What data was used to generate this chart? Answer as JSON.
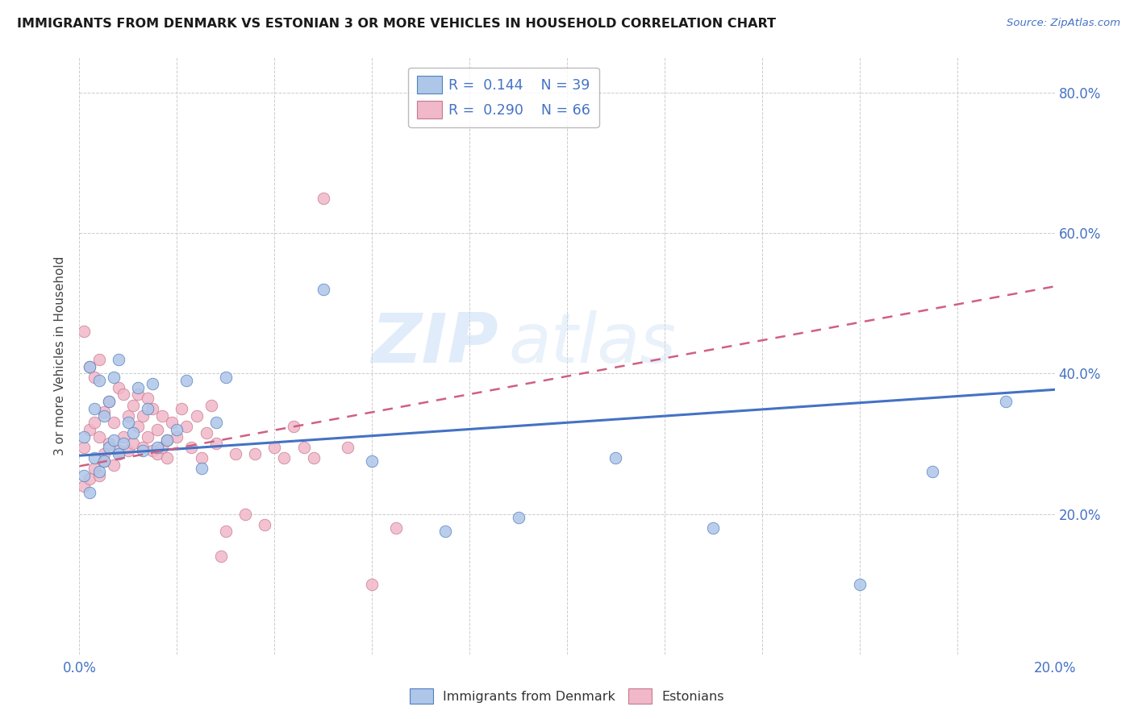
{
  "title": "IMMIGRANTS FROM DENMARK VS ESTONIAN 3 OR MORE VEHICLES IN HOUSEHOLD CORRELATION CHART",
  "source": "Source: ZipAtlas.com",
  "ylabel": "3 or more Vehicles in Household",
  "xlim": [
    0.0,
    0.2
  ],
  "ylim": [
    0.0,
    0.85
  ],
  "color_denmark": "#aec6e8",
  "color_estonia": "#f0b8c8",
  "line_color_denmark": "#4472c4",
  "line_color_estonia": "#d06080",
  "R_denmark": 0.144,
  "N_denmark": 39,
  "R_estonia": 0.29,
  "N_estonia": 66,
  "legend_label_denmark": "Immigrants from Denmark",
  "legend_label_estonia": "Estonians",
  "watermark_zip": "ZIP",
  "watermark_atlas": "atlas",
  "dk_intercept": 0.283,
  "dk_slope": 0.47,
  "et_intercept": 0.268,
  "et_slope": 1.28,
  "denmark_x": [
    0.001,
    0.001,
    0.002,
    0.002,
    0.003,
    0.003,
    0.004,
    0.004,
    0.005,
    0.005,
    0.006,
    0.006,
    0.007,
    0.007,
    0.008,
    0.008,
    0.009,
    0.01,
    0.011,
    0.012,
    0.013,
    0.014,
    0.015,
    0.016,
    0.018,
    0.02,
    0.022,
    0.025,
    0.028,
    0.03,
    0.05,
    0.06,
    0.075,
    0.09,
    0.11,
    0.13,
    0.16,
    0.175,
    0.19
  ],
  "denmark_y": [
    0.255,
    0.31,
    0.23,
    0.41,
    0.28,
    0.35,
    0.26,
    0.39,
    0.275,
    0.34,
    0.295,
    0.36,
    0.305,
    0.395,
    0.285,
    0.42,
    0.3,
    0.33,
    0.315,
    0.38,
    0.29,
    0.35,
    0.385,
    0.295,
    0.305,
    0.32,
    0.39,
    0.265,
    0.33,
    0.395,
    0.52,
    0.275,
    0.175,
    0.195,
    0.28,
    0.18,
    0.1,
    0.26,
    0.36
  ],
  "estonia_x": [
    0.001,
    0.001,
    0.001,
    0.002,
    0.002,
    0.002,
    0.003,
    0.003,
    0.003,
    0.004,
    0.004,
    0.004,
    0.005,
    0.005,
    0.005,
    0.006,
    0.006,
    0.007,
    0.007,
    0.008,
    0.008,
    0.009,
    0.009,
    0.01,
    0.01,
    0.011,
    0.011,
    0.012,
    0.012,
    0.013,
    0.013,
    0.014,
    0.014,
    0.015,
    0.015,
    0.016,
    0.016,
    0.017,
    0.017,
    0.018,
    0.018,
    0.019,
    0.02,
    0.021,
    0.022,
    0.023,
    0.024,
    0.025,
    0.026,
    0.027,
    0.028,
    0.029,
    0.03,
    0.032,
    0.034,
    0.036,
    0.038,
    0.04,
    0.042,
    0.044,
    0.046,
    0.048,
    0.05,
    0.055,
    0.06,
    0.065
  ],
  "estonia_y": [
    0.24,
    0.295,
    0.46,
    0.25,
    0.32,
    0.41,
    0.265,
    0.33,
    0.395,
    0.255,
    0.31,
    0.42,
    0.275,
    0.345,
    0.285,
    0.3,
    0.36,
    0.27,
    0.33,
    0.29,
    0.38,
    0.31,
    0.37,
    0.34,
    0.29,
    0.355,
    0.3,
    0.325,
    0.37,
    0.295,
    0.34,
    0.31,
    0.365,
    0.29,
    0.35,
    0.32,
    0.285,
    0.34,
    0.295,
    0.305,
    0.28,
    0.33,
    0.31,
    0.35,
    0.325,
    0.295,
    0.34,
    0.28,
    0.315,
    0.355,
    0.3,
    0.14,
    0.175,
    0.285,
    0.2,
    0.285,
    0.185,
    0.295,
    0.28,
    0.325,
    0.295,
    0.28,
    0.65,
    0.295,
    0.1,
    0.18
  ]
}
